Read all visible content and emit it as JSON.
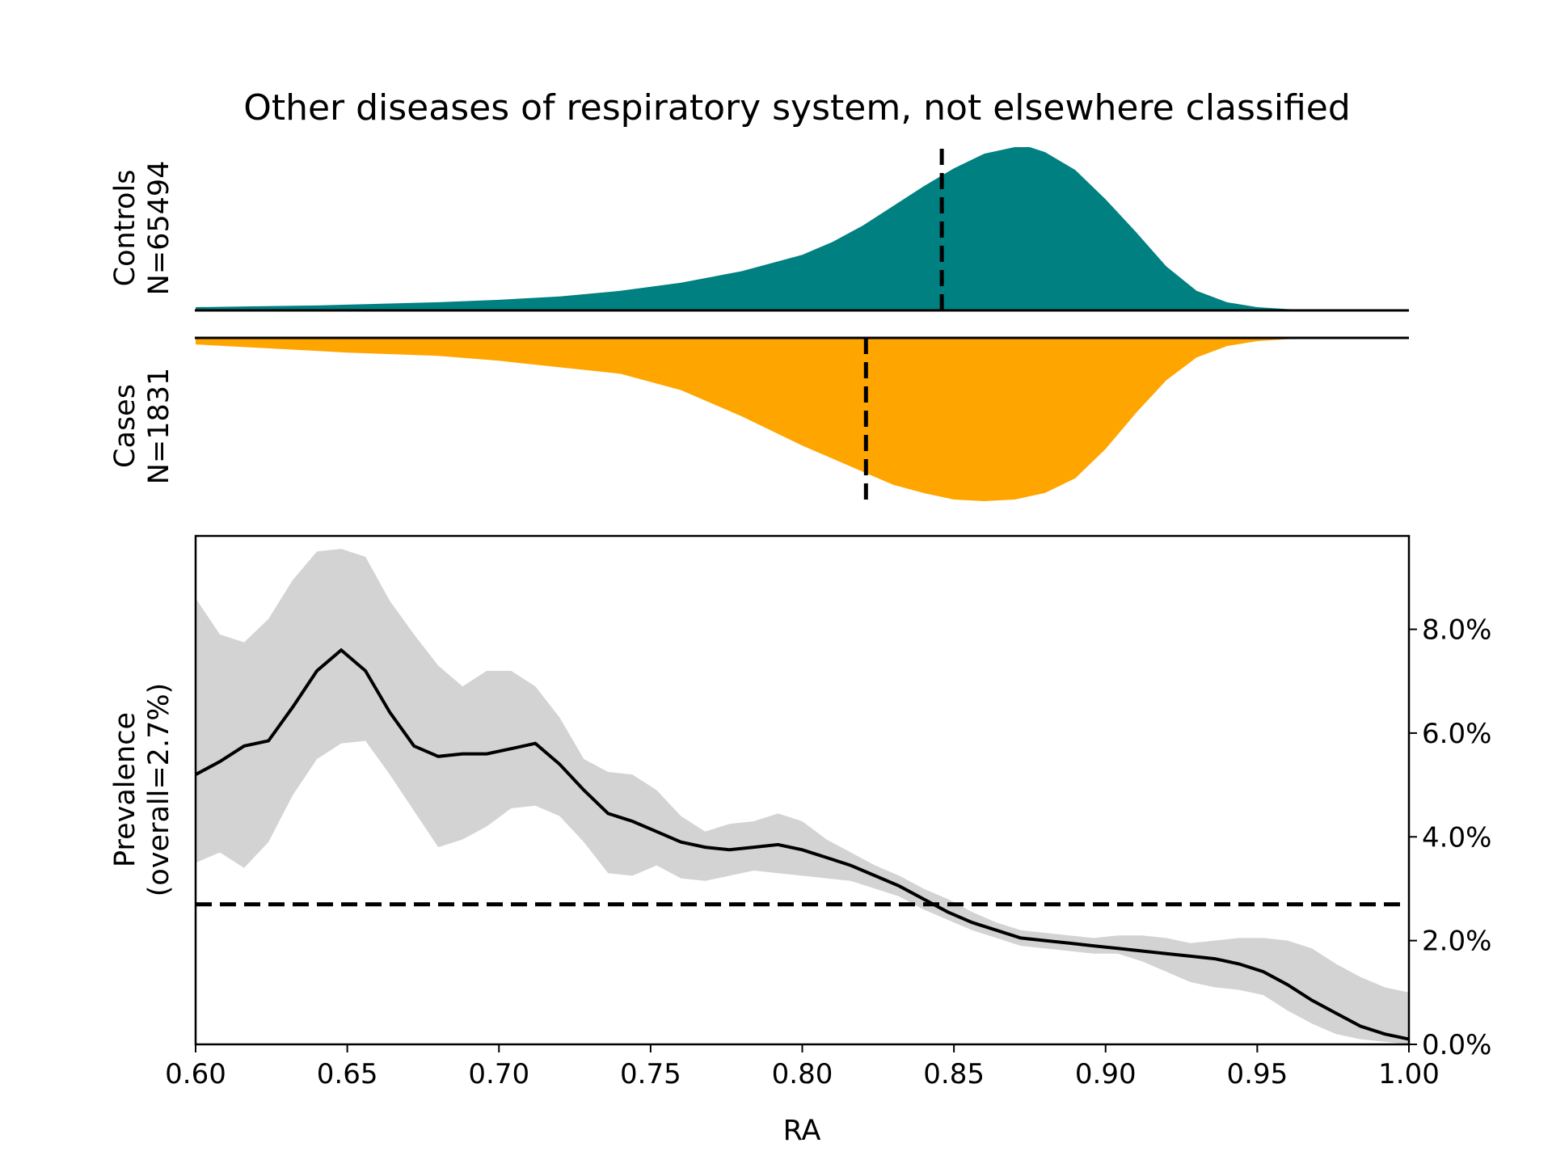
{
  "chart_data": {
    "type": "area",
    "title": "Other diseases of respiratory system, not elsewhere classified",
    "xlabel": "RA",
    "xlim": [
      0.6,
      1.0
    ],
    "x_ticks": [
      "0.60",
      "0.65",
      "0.70",
      "0.75",
      "0.80",
      "0.85",
      "0.90",
      "0.95",
      "1.00"
    ],
    "controls": {
      "label": "Controls",
      "n_label": "N=65494",
      "color": "#008080",
      "median": 0.846,
      "x": [
        0.6,
        0.62,
        0.64,
        0.66,
        0.68,
        0.7,
        0.72,
        0.74,
        0.76,
        0.78,
        0.8,
        0.81,
        0.82,
        0.83,
        0.84,
        0.85,
        0.86,
        0.87,
        0.875,
        0.88,
        0.89,
        0.9,
        0.91,
        0.92,
        0.93,
        0.94,
        0.95,
        0.96,
        0.97,
        0.98,
        1.0
      ],
      "density": [
        0.02,
        0.025,
        0.03,
        0.04,
        0.05,
        0.065,
        0.085,
        0.12,
        0.17,
        0.24,
        0.34,
        0.42,
        0.52,
        0.64,
        0.76,
        0.87,
        0.96,
        1.0,
        1.0,
        0.97,
        0.86,
        0.68,
        0.48,
        0.27,
        0.12,
        0.05,
        0.02,
        0.008,
        0.003,
        0.001,
        0.0
      ]
    },
    "cases": {
      "label": "Cases",
      "n_label": "N=1831",
      "color": "#FFA500",
      "median": 0.821,
      "x": [
        0.6,
        0.63,
        0.65,
        0.68,
        0.7,
        0.72,
        0.74,
        0.76,
        0.78,
        0.8,
        0.82,
        0.83,
        0.84,
        0.85,
        0.86,
        0.87,
        0.88,
        0.89,
        0.9,
        0.91,
        0.92,
        0.93,
        0.94,
        0.95,
        0.96,
        0.97,
        1.0
      ],
      "density": [
        0.04,
        0.07,
        0.09,
        0.11,
        0.14,
        0.18,
        0.22,
        0.32,
        0.48,
        0.66,
        0.82,
        0.9,
        0.95,
        0.99,
        1.0,
        0.99,
        0.95,
        0.86,
        0.68,
        0.46,
        0.26,
        0.12,
        0.05,
        0.02,
        0.008,
        0.003,
        0.0
      ]
    },
    "prevalence": {
      "ylabel_line1": "Prevalence",
      "ylabel_line2": "(overall=2.7%)",
      "overall": 2.7,
      "ylim": [
        0,
        9.8
      ],
      "y_ticks": [
        "0.0%",
        "2.0%",
        "4.0%",
        "6.0%",
        "8.0%"
      ],
      "y_tick_values": [
        0,
        2,
        4,
        6,
        8
      ],
      "band_color": "#d3d3d3",
      "x": [
        0.6,
        0.608,
        0.616,
        0.624,
        0.632,
        0.64,
        0.648,
        0.656,
        0.664,
        0.672,
        0.68,
        0.688,
        0.696,
        0.704,
        0.712,
        0.72,
        0.728,
        0.736,
        0.744,
        0.752,
        0.76,
        0.768,
        0.776,
        0.784,
        0.792,
        0.8,
        0.808,
        0.816,
        0.824,
        0.832,
        0.84,
        0.848,
        0.856,
        0.864,
        0.872,
        0.88,
        0.888,
        0.896,
        0.904,
        0.912,
        0.92,
        0.928,
        0.936,
        0.944,
        0.952,
        0.96,
        0.968,
        0.976,
        0.984,
        0.992,
        1.0
      ],
      "mean": [
        5.2,
        5.45,
        5.75,
        5.85,
        6.5,
        7.2,
        7.6,
        7.2,
        6.4,
        5.75,
        5.55,
        5.6,
        5.6,
        5.7,
        5.8,
        5.4,
        4.9,
        4.45,
        4.3,
        4.1,
        3.9,
        3.8,
        3.75,
        3.8,
        3.85,
        3.75,
        3.6,
        3.45,
        3.25,
        3.05,
        2.8,
        2.55,
        2.35,
        2.2,
        2.05,
        2.0,
        1.95,
        1.9,
        1.85,
        1.8,
        1.75,
        1.7,
        1.65,
        1.55,
        1.4,
        1.15,
        0.85,
        0.6,
        0.35,
        0.2,
        0.1
      ],
      "upper": [
        8.6,
        7.9,
        7.75,
        8.2,
        8.95,
        9.5,
        9.55,
        9.4,
        8.55,
        7.9,
        7.3,
        6.9,
        7.2,
        7.2,
        6.9,
        6.3,
        5.5,
        5.25,
        5.2,
        4.9,
        4.4,
        4.1,
        4.25,
        4.3,
        4.45,
        4.3,
        3.95,
        3.7,
        3.45,
        3.25,
        3.0,
        2.8,
        2.55,
        2.35,
        2.2,
        2.15,
        2.1,
        2.05,
        2.1,
        2.1,
        2.05,
        1.95,
        2.0,
        2.05,
        2.05,
        2.0,
        1.85,
        1.55,
        1.3,
        1.1,
        1.0
      ],
      "lower": [
        3.5,
        3.7,
        3.4,
        3.9,
        4.8,
        5.5,
        5.8,
        5.85,
        5.2,
        4.5,
        3.8,
        3.95,
        4.2,
        4.55,
        4.6,
        4.4,
        3.9,
        3.3,
        3.25,
        3.45,
        3.2,
        3.15,
        3.25,
        3.35,
        3.3,
        3.25,
        3.2,
        3.15,
        3.0,
        2.85,
        2.6,
        2.4,
        2.2,
        2.05,
        1.9,
        1.85,
        1.8,
        1.75,
        1.75,
        1.6,
        1.4,
        1.2,
        1.1,
        1.05,
        0.95,
        0.65,
        0.4,
        0.2,
        0.1,
        0.05,
        0.0
      ]
    }
  }
}
